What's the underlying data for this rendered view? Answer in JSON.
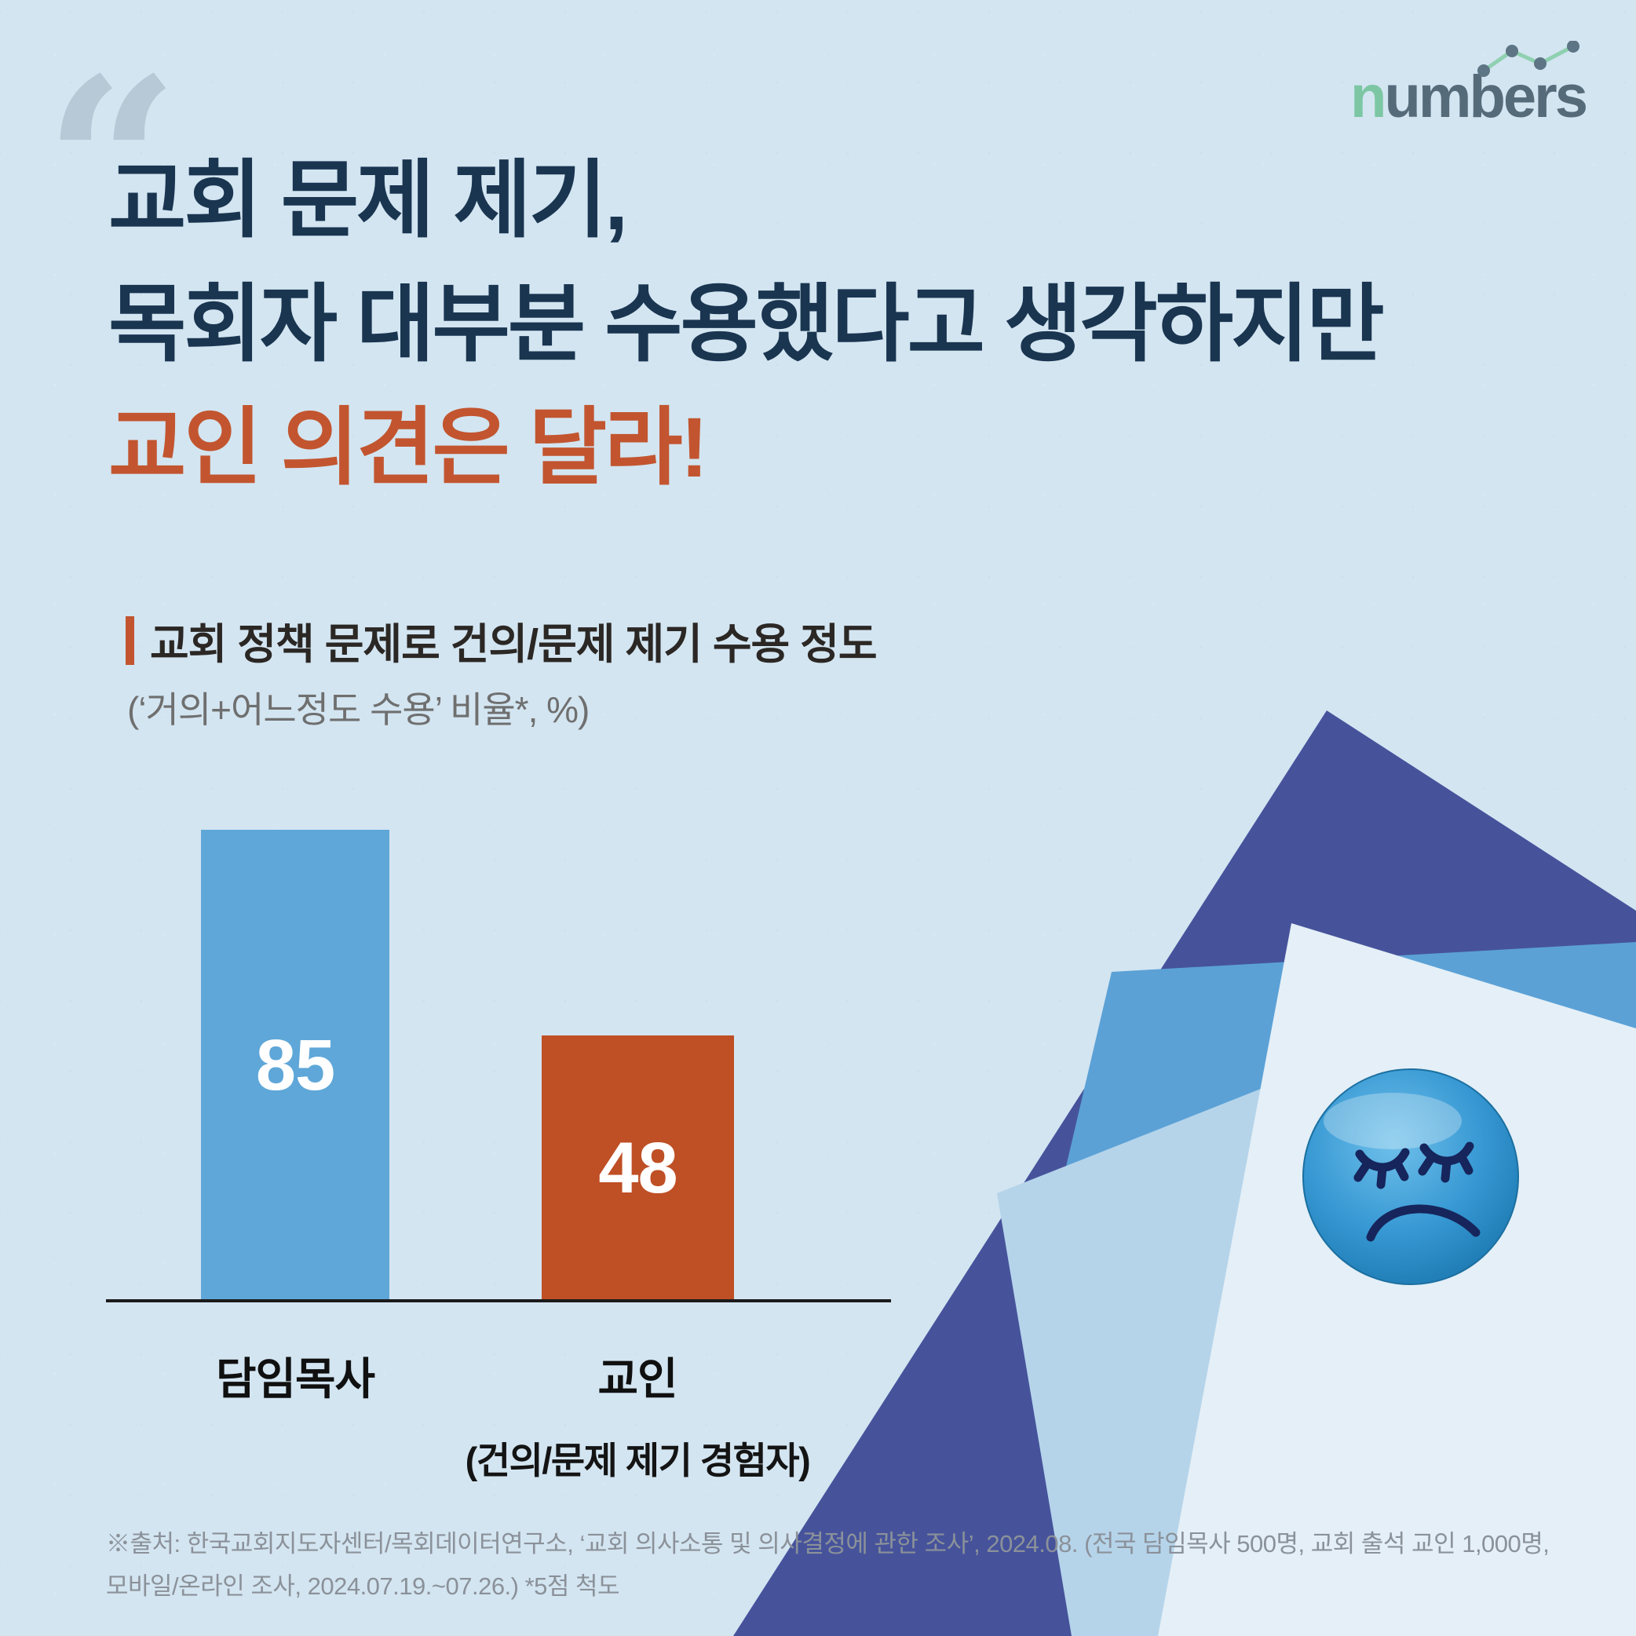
{
  "logo": {
    "text_green": "n",
    "text_dark": "umbers"
  },
  "quote_mark": "“",
  "headline": {
    "line1": "교회 문제 제기,",
    "line2": "목회자 대부분 수용했다고 생각하지만",
    "line3": "교인 의견은 달라!",
    "navy_color": "#1a3550",
    "accent_color": "#c2552f"
  },
  "chart": {
    "title": "교회 정책 문제로 건의/문제 제기 수용 정도",
    "subtitle": "(‘거의+어느정도 수용’ 비율*, %)"
  },
  "chart_data": {
    "type": "bar",
    "title": "교회 정책 문제로 건의/문제 제기 수용 정도",
    "subtitle": "(‘거의+어느정도 수용’ 비율*, %)",
    "categories": [
      "담임목사",
      "교인"
    ],
    "category_sublabels": [
      "",
      "(건의/문제 제기 경험자)"
    ],
    "values": [
      85,
      48
    ],
    "unit": "%",
    "ylim": [
      0,
      100
    ],
    "grid": false,
    "bar_colors": [
      "#5fa7d8",
      "#bf4f25"
    ],
    "value_label_color": "#ffffff",
    "axis_color": "#1b1b1b"
  },
  "footer": {
    "line1": "※출처: 한국교회지도자센터/목회데이터연구소, ‘교회 의사소통 및 의사결정에 관한 조사’, 2024.08. (전국 담임목사 500명, 교회 출석 교인 1,000명,",
    "line2": "모바일/온라인 조사, 2024.07.19.~07.26.)    *5점 척도"
  },
  "decoration": {
    "sad_face_button": "blue glossy magnet with closed eyes and frown",
    "paper_colors": {
      "navy": "#46539b",
      "medium_blue": "#5ba1d6",
      "light_blue": "#b5d4ea",
      "white": "#e4eff7"
    }
  }
}
